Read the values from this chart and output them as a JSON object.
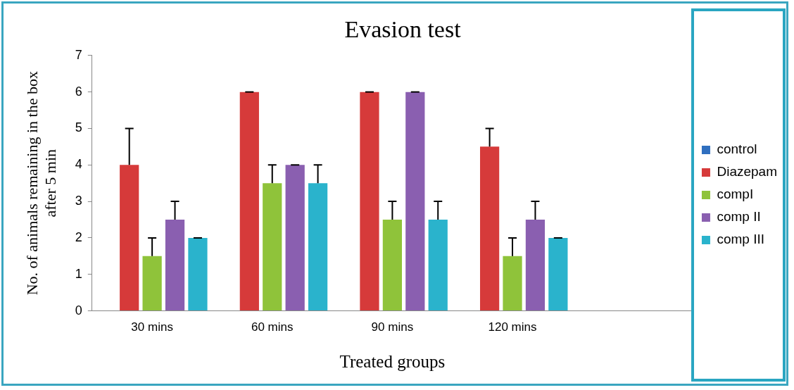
{
  "chart_data": {
    "type": "bar",
    "title": "Evasion test",
    "xlabel": "Treated groups",
    "ylabel": "No. of animals remaining in the box after 5 min",
    "categories": [
      "30 mins",
      "60 mins",
      "90 mins",
      "120 mins",
      null
    ],
    "series": [
      {
        "name": "control",
        "color": "#2f6fbf",
        "values": [
          0,
          0,
          0,
          0,
          null
        ]
      },
      {
        "name": "Diazepam",
        "color": "#d63a3a",
        "values": [
          4,
          6,
          6,
          4.5,
          null
        ],
        "errors": [
          [
            4,
            5
          ],
          [
            6,
            6
          ],
          [
            6,
            6
          ],
          [
            4.5,
            5
          ],
          null
        ]
      },
      {
        "name": "compI",
        "color": "#8fc33a",
        "values": [
          1.5,
          3.5,
          2.5,
          1.5,
          null
        ],
        "errors": [
          [
            1.5,
            2
          ],
          [
            3.5,
            4
          ],
          [
            2.5,
            3
          ],
          [
            1.5,
            2
          ],
          null
        ]
      },
      {
        "name": "comp II",
        "color": "#8a5fb0",
        "values": [
          2.5,
          4,
          6,
          2.5,
          null
        ],
        "errors": [
          [
            2.5,
            3
          ],
          [
            4,
            4
          ],
          [
            6,
            6
          ],
          [
            2.5,
            3
          ],
          null
        ]
      },
      {
        "name": "comp III",
        "color": "#2ab3cc",
        "values": [
          2,
          3.5,
          2.5,
          2,
          null
        ],
        "errors": [
          [
            2,
            2
          ],
          [
            3.5,
            4
          ],
          [
            2.5,
            3
          ],
          [
            2,
            2
          ],
          null
        ]
      }
    ],
    "ylim": [
      0,
      7
    ],
    "yticks": [
      0,
      1,
      2,
      3,
      4,
      5,
      6,
      7
    ],
    "grid": false,
    "legend": "right"
  }
}
